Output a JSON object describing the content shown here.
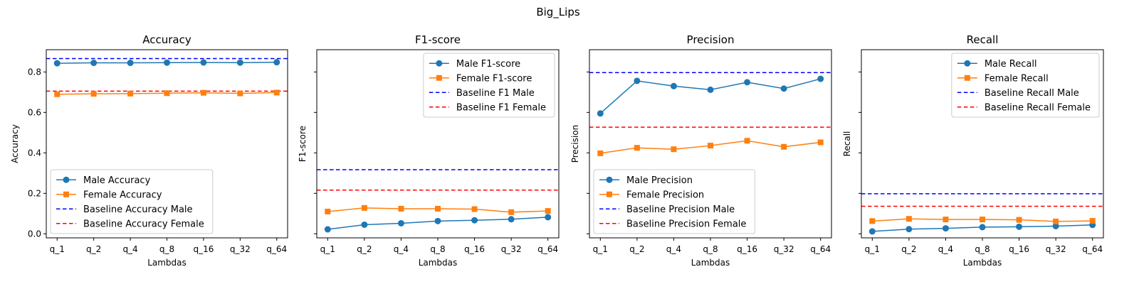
{
  "figure": {
    "suptitle": "Big_Lips"
  },
  "chart_data": [
    {
      "type": "line",
      "title": "Accuracy",
      "xlabel": "Lambdas",
      "ylabel": "Accuracy",
      "categories": [
        "q_1",
        "q_2",
        "q_4",
        "q_8",
        "q_16",
        "q_32",
        "q_64"
      ],
      "ylim": [
        -0.02,
        0.91
      ],
      "yticks": [
        0.0,
        0.2,
        0.4,
        0.6,
        0.8
      ],
      "ytick_labels": [
        "0.0",
        "0.2",
        "0.4",
        "0.6",
        "0.8"
      ],
      "legend_loc": "lower-left",
      "series": [
        {
          "name": "Male Accuracy",
          "color": "#1f77b4",
          "marker": "circle",
          "values": [
            0.843,
            0.845,
            0.845,
            0.846,
            0.847,
            0.846,
            0.848
          ]
        },
        {
          "name": "Female Accuracy",
          "color": "#ff7f0e",
          "marker": "square",
          "values": [
            0.69,
            0.692,
            0.693,
            0.695,
            0.697,
            0.694,
            0.698
          ]
        }
      ],
      "baselines": [
        {
          "name": "Baseline Accuracy Male",
          "color": "#0000ff",
          "value": 0.866
        },
        {
          "name": "Baseline Accuracy Female",
          "color": "#ff0000",
          "value": 0.705
        }
      ]
    },
    {
      "type": "line",
      "title": "F1-score",
      "xlabel": "Lambdas",
      "ylabel": "F1-score",
      "categories": [
        "q_1",
        "q_2",
        "q_4",
        "q_8",
        "q_16",
        "q_32",
        "q_64"
      ],
      "ylim": [
        -0.02,
        0.91
      ],
      "yticks": [
        0.0,
        0.2,
        0.4,
        0.6,
        0.8
      ],
      "ytick_labels": [],
      "legend_loc": "upper-right",
      "series": [
        {
          "name": "Male F1-score",
          "color": "#1f77b4",
          "marker": "circle",
          "values": [
            0.022,
            0.045,
            0.052,
            0.063,
            0.067,
            0.072,
            0.082
          ]
        },
        {
          "name": "Female F1-score",
          "color": "#ff7f0e",
          "marker": "square",
          "values": [
            0.11,
            0.128,
            0.124,
            0.124,
            0.122,
            0.107,
            0.113
          ]
        }
      ],
      "baselines": [
        {
          "name": "Baseline F1 Male",
          "color": "#0000ff",
          "value": 0.317
        },
        {
          "name": "Baseline F1 Female",
          "color": "#ff0000",
          "value": 0.216
        }
      ]
    },
    {
      "type": "line",
      "title": "Precision",
      "xlabel": "Lambdas",
      "ylabel": "Precision",
      "categories": [
        "q_1",
        "q_2",
        "q_4",
        "q_8",
        "q_16",
        "q_32",
        "q_64"
      ],
      "ylim": [
        -0.02,
        0.91
      ],
      "yticks": [
        0.0,
        0.2,
        0.4,
        0.6,
        0.8
      ],
      "ytick_labels": [],
      "legend_loc": "lower-left",
      "series": [
        {
          "name": "Male Precision",
          "color": "#1f77b4",
          "marker": "circle",
          "values": [
            0.595,
            0.756,
            0.73,
            0.712,
            0.749,
            0.718,
            0.766
          ]
        },
        {
          "name": "Female Precision",
          "color": "#ff7f0e",
          "marker": "square",
          "values": [
            0.398,
            0.425,
            0.418,
            0.436,
            0.46,
            0.43,
            0.452
          ]
        }
      ],
      "baselines": [
        {
          "name": "Baseline Precision Male",
          "color": "#0000ff",
          "value": 0.797
        },
        {
          "name": "Baseline Precision Female",
          "color": "#ff0000",
          "value": 0.527
        }
      ]
    },
    {
      "type": "line",
      "title": "Recall",
      "xlabel": "Lambdas",
      "ylabel": "Recall",
      "categories": [
        "q_1",
        "q_2",
        "q_4",
        "q_8",
        "q_16",
        "q_32",
        "q_64"
      ],
      "ylim": [
        -0.02,
        0.91
      ],
      "yticks": [
        0.0,
        0.2,
        0.4,
        0.6,
        0.8
      ],
      "ytick_labels": [],
      "legend_loc": "upper-right",
      "series": [
        {
          "name": "Male Recall",
          "color": "#1f77b4",
          "marker": "circle",
          "values": [
            0.012,
            0.023,
            0.027,
            0.033,
            0.035,
            0.038,
            0.044
          ]
        },
        {
          "name": "Female Recall",
          "color": "#ff7f0e",
          "marker": "square",
          "values": [
            0.063,
            0.074,
            0.071,
            0.071,
            0.069,
            0.061,
            0.064
          ]
        }
      ],
      "baselines": [
        {
          "name": "Baseline Recall Male",
          "color": "#0000ff",
          "value": 0.198
        },
        {
          "name": "Baseline Recall Female",
          "color": "#ff0000",
          "value": 0.136
        }
      ]
    }
  ]
}
